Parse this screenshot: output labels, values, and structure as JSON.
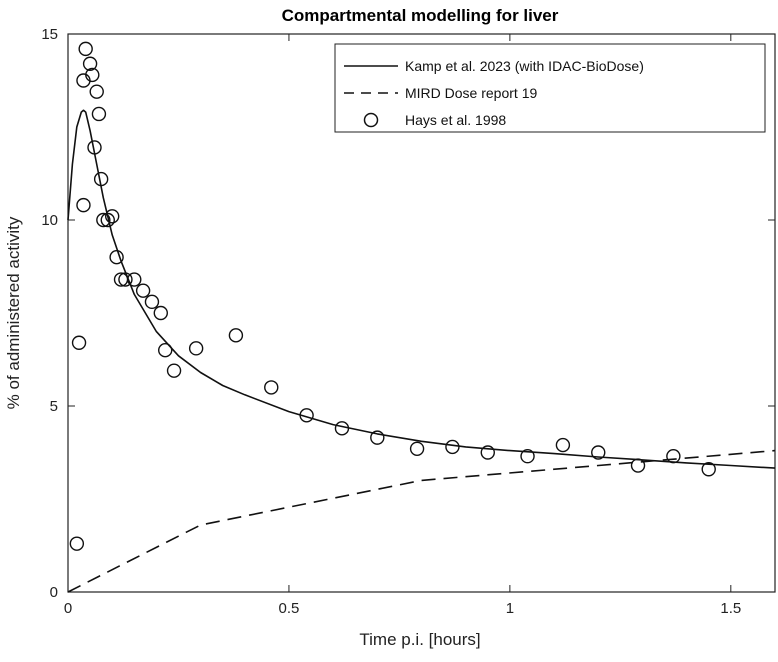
{
  "chart_data": {
    "type": "line",
    "title": "Compartmental modelling for liver",
    "xlabel": "Time p.i. [hours]",
    "ylabel": "% of administered activity",
    "xlim": [
      0,
      1.6
    ],
    "ylim": [
      0,
      15
    ],
    "xticks": [
      0,
      0.5,
      1,
      1.5
    ],
    "xtick_labels": [
      "0",
      "0.5",
      "1",
      "1.5"
    ],
    "yticks": [
      0,
      5,
      10,
      15
    ],
    "ytick_labels": [
      "0",
      "5",
      "10",
      "15"
    ],
    "grid": false,
    "legend_position": "top-right",
    "series": [
      {
        "name": "Kamp et al. 2023 (with IDAC-BioDose)",
        "style": "solid",
        "x": [
          0,
          0.01,
          0.02,
          0.03,
          0.035,
          0.04,
          0.05,
          0.06,
          0.07,
          0.08,
          0.1,
          0.12,
          0.15,
          0.2,
          0.25,
          0.3,
          0.35,
          0.4,
          0.5,
          0.6,
          0.7,
          0.8,
          0.9,
          1.0,
          1.1,
          1.2,
          1.3,
          1.4,
          1.5,
          1.6
        ],
        "y": [
          10.0,
          11.5,
          12.5,
          12.9,
          12.95,
          12.9,
          12.4,
          11.8,
          11.2,
          10.6,
          9.6,
          8.9,
          8.0,
          7.0,
          6.35,
          5.9,
          5.55,
          5.3,
          4.85,
          4.5,
          4.25,
          4.05,
          3.9,
          3.8,
          3.72,
          3.63,
          3.55,
          3.47,
          3.4,
          3.33
        ]
      },
      {
        "name": "MIRD Dose report 19",
        "style": "dashed",
        "x": [
          0,
          0.3,
          0.8,
          1.3,
          1.6
        ],
        "y": [
          0,
          1.8,
          3.0,
          3.5,
          3.8
        ]
      },
      {
        "name": "Hays et al. 1998",
        "style": "markers",
        "marker": "circle",
        "x": [
          0.02,
          0.025,
          0.035,
          0.035,
          0.04,
          0.05,
          0.055,
          0.06,
          0.065,
          0.07,
          0.075,
          0.08,
          0.09,
          0.1,
          0.11,
          0.12,
          0.13,
          0.15,
          0.17,
          0.19,
          0.21,
          0.22,
          0.24,
          0.29,
          0.38,
          0.46,
          0.54,
          0.62,
          0.7,
          0.79,
          0.87,
          0.95,
          1.04,
          1.12,
          1.2,
          1.29,
          1.37,
          1.45
        ],
        "y": [
          1.3,
          6.7,
          13.75,
          10.4,
          14.6,
          14.2,
          13.9,
          11.95,
          13.45,
          12.85,
          11.1,
          10.0,
          10.0,
          10.1,
          9.0,
          8.4,
          8.4,
          8.4,
          8.1,
          7.8,
          7.5,
          6.5,
          5.95,
          6.55,
          6.9,
          5.5,
          4.75,
          4.4,
          4.15,
          3.85,
          3.9,
          3.75,
          3.65,
          3.95,
          3.75,
          3.4,
          3.65,
          3.3
        ]
      }
    ]
  }
}
